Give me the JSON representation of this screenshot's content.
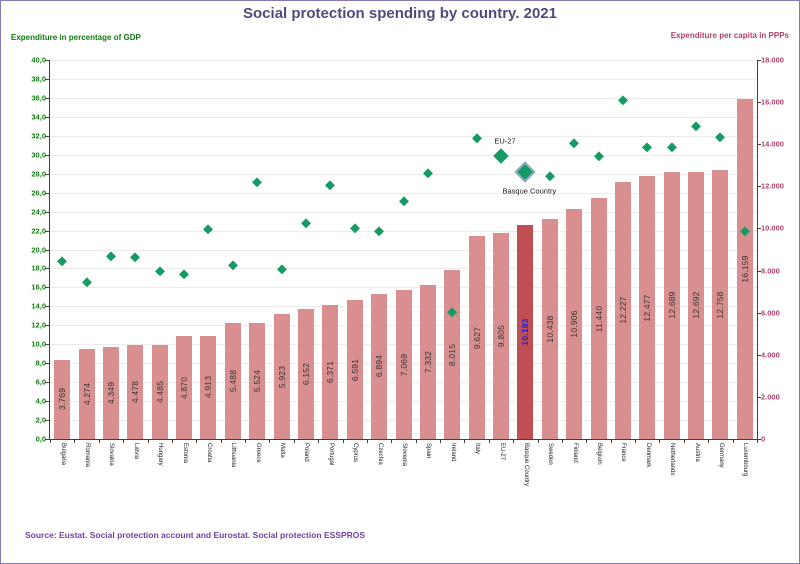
{
  "title": "Social protection spending by country. 2021",
  "source": "Source: Eustat. Social protection account and Eurostat. Social protection ESSPROS",
  "chart_data": {
    "type": "bar",
    "subtype": "bar-with-diamond-scatter-dual-axis",
    "title": "Social protection spending by country. 2021",
    "left_axis": {
      "label": "Expenditure in percentage of GDP",
      "min": 0,
      "max": 40,
      "step": 2,
      "ticks": [
        "40,0",
        "38,0",
        "36,0",
        "34,0",
        "32,0",
        "30,0",
        "28,0",
        "26,0",
        "24,0",
        "22,0",
        "20,0",
        "18,0",
        "16,0",
        "14,0",
        "12,0",
        "10,0",
        "8,0",
        "6,0",
        "4,0",
        "2,0",
        "0,0"
      ]
    },
    "right_axis": {
      "label": "Expenditure per capita in PPPs",
      "min": 0,
      "max": 18000,
      "step": 2000,
      "ticks": [
        "18.000",
        "16.000",
        "14.000",
        "12.000",
        "10.000",
        "8.000",
        "6.000",
        "4.000",
        "2.000",
        "0"
      ]
    },
    "categories": [
      "Bulgaria",
      "Romania",
      "Slovakia",
      "Latvia",
      "Hungary",
      "Estonia",
      "Croatia",
      "Lithuania",
      "Greece",
      "Malta",
      "Poland",
      "Portugal",
      "Cyprus",
      "Czechia",
      "Slovenia",
      "Spain",
      "Ireland",
      "Italy",
      "EU-27",
      "Basque Country",
      "Sweden",
      "Finland",
      "Belgium",
      "France",
      "Denmark",
      "Netherlands",
      "Austria",
      "Germany",
      "Luxembourg"
    ],
    "series": [
      {
        "name": "Expenditure per capita in PPPs",
        "type": "bar",
        "axis": "right",
        "values": [
          3769,
          4274,
          4349,
          4478,
          4485,
          4870,
          4913,
          5488,
          5524,
          5923,
          6152,
          6371,
          6591,
          6894,
          7069,
          7332,
          8015,
          9627,
          9805,
          10183,
          10438,
          10906,
          11440,
          12227,
          12477,
          12689,
          12692,
          12758,
          16159
        ],
        "labels": [
          "3.769",
          "4.274",
          "4.349",
          "4.478",
          "4.485",
          "4.870",
          "4.913",
          "5.488",
          "5.524",
          "5.923",
          "6.152",
          "6.371",
          "6.591",
          "6.894",
          "7.069",
          "7.332",
          "8.015",
          "9.627",
          "9.805",
          "10.183",
          "10.438",
          "10.906",
          "11.440",
          "12.227",
          "12.477",
          "12.689",
          "12.692",
          "12.758",
          "16.159"
        ]
      },
      {
        "name": "Expenditure in percentage of GDP",
        "type": "scatter-diamond",
        "axis": "left",
        "values": [
          18.8,
          16.6,
          19.3,
          19.2,
          17.7,
          17.4,
          22.2,
          18.4,
          27.1,
          17.9,
          22.8,
          26.8,
          22.3,
          21.9,
          25.1,
          28.1,
          13.4,
          31.8,
          29.9,
          28.2,
          27.8,
          31.2,
          29.9,
          35.8,
          30.8,
          30.8,
          33.0,
          31.9,
          22.0
        ]
      }
    ],
    "highlight_index": 19,
    "emphasized_diamond_indexes": [
      18,
      19
    ],
    "annotations": [
      {
        "text": "EU-27",
        "index": 18,
        "position": "above"
      },
      {
        "text": "Basque Country",
        "index": 19,
        "position": "below"
      }
    ],
    "colors": {
      "bar": "#d98f90",
      "bar_highlight": "#bf4f52",
      "diamond": "#149a63",
      "diamond_highlight_border": "#93a9c8",
      "left_axis_text": "#107c10",
      "right_axis_text": "#b04070",
      "title": "#4f4c7d",
      "source": "#6f42a0",
      "value_label": "#333333",
      "value_label_highlight": "#1f1fd0"
    },
    "grid": true,
    "legend": "none"
  }
}
